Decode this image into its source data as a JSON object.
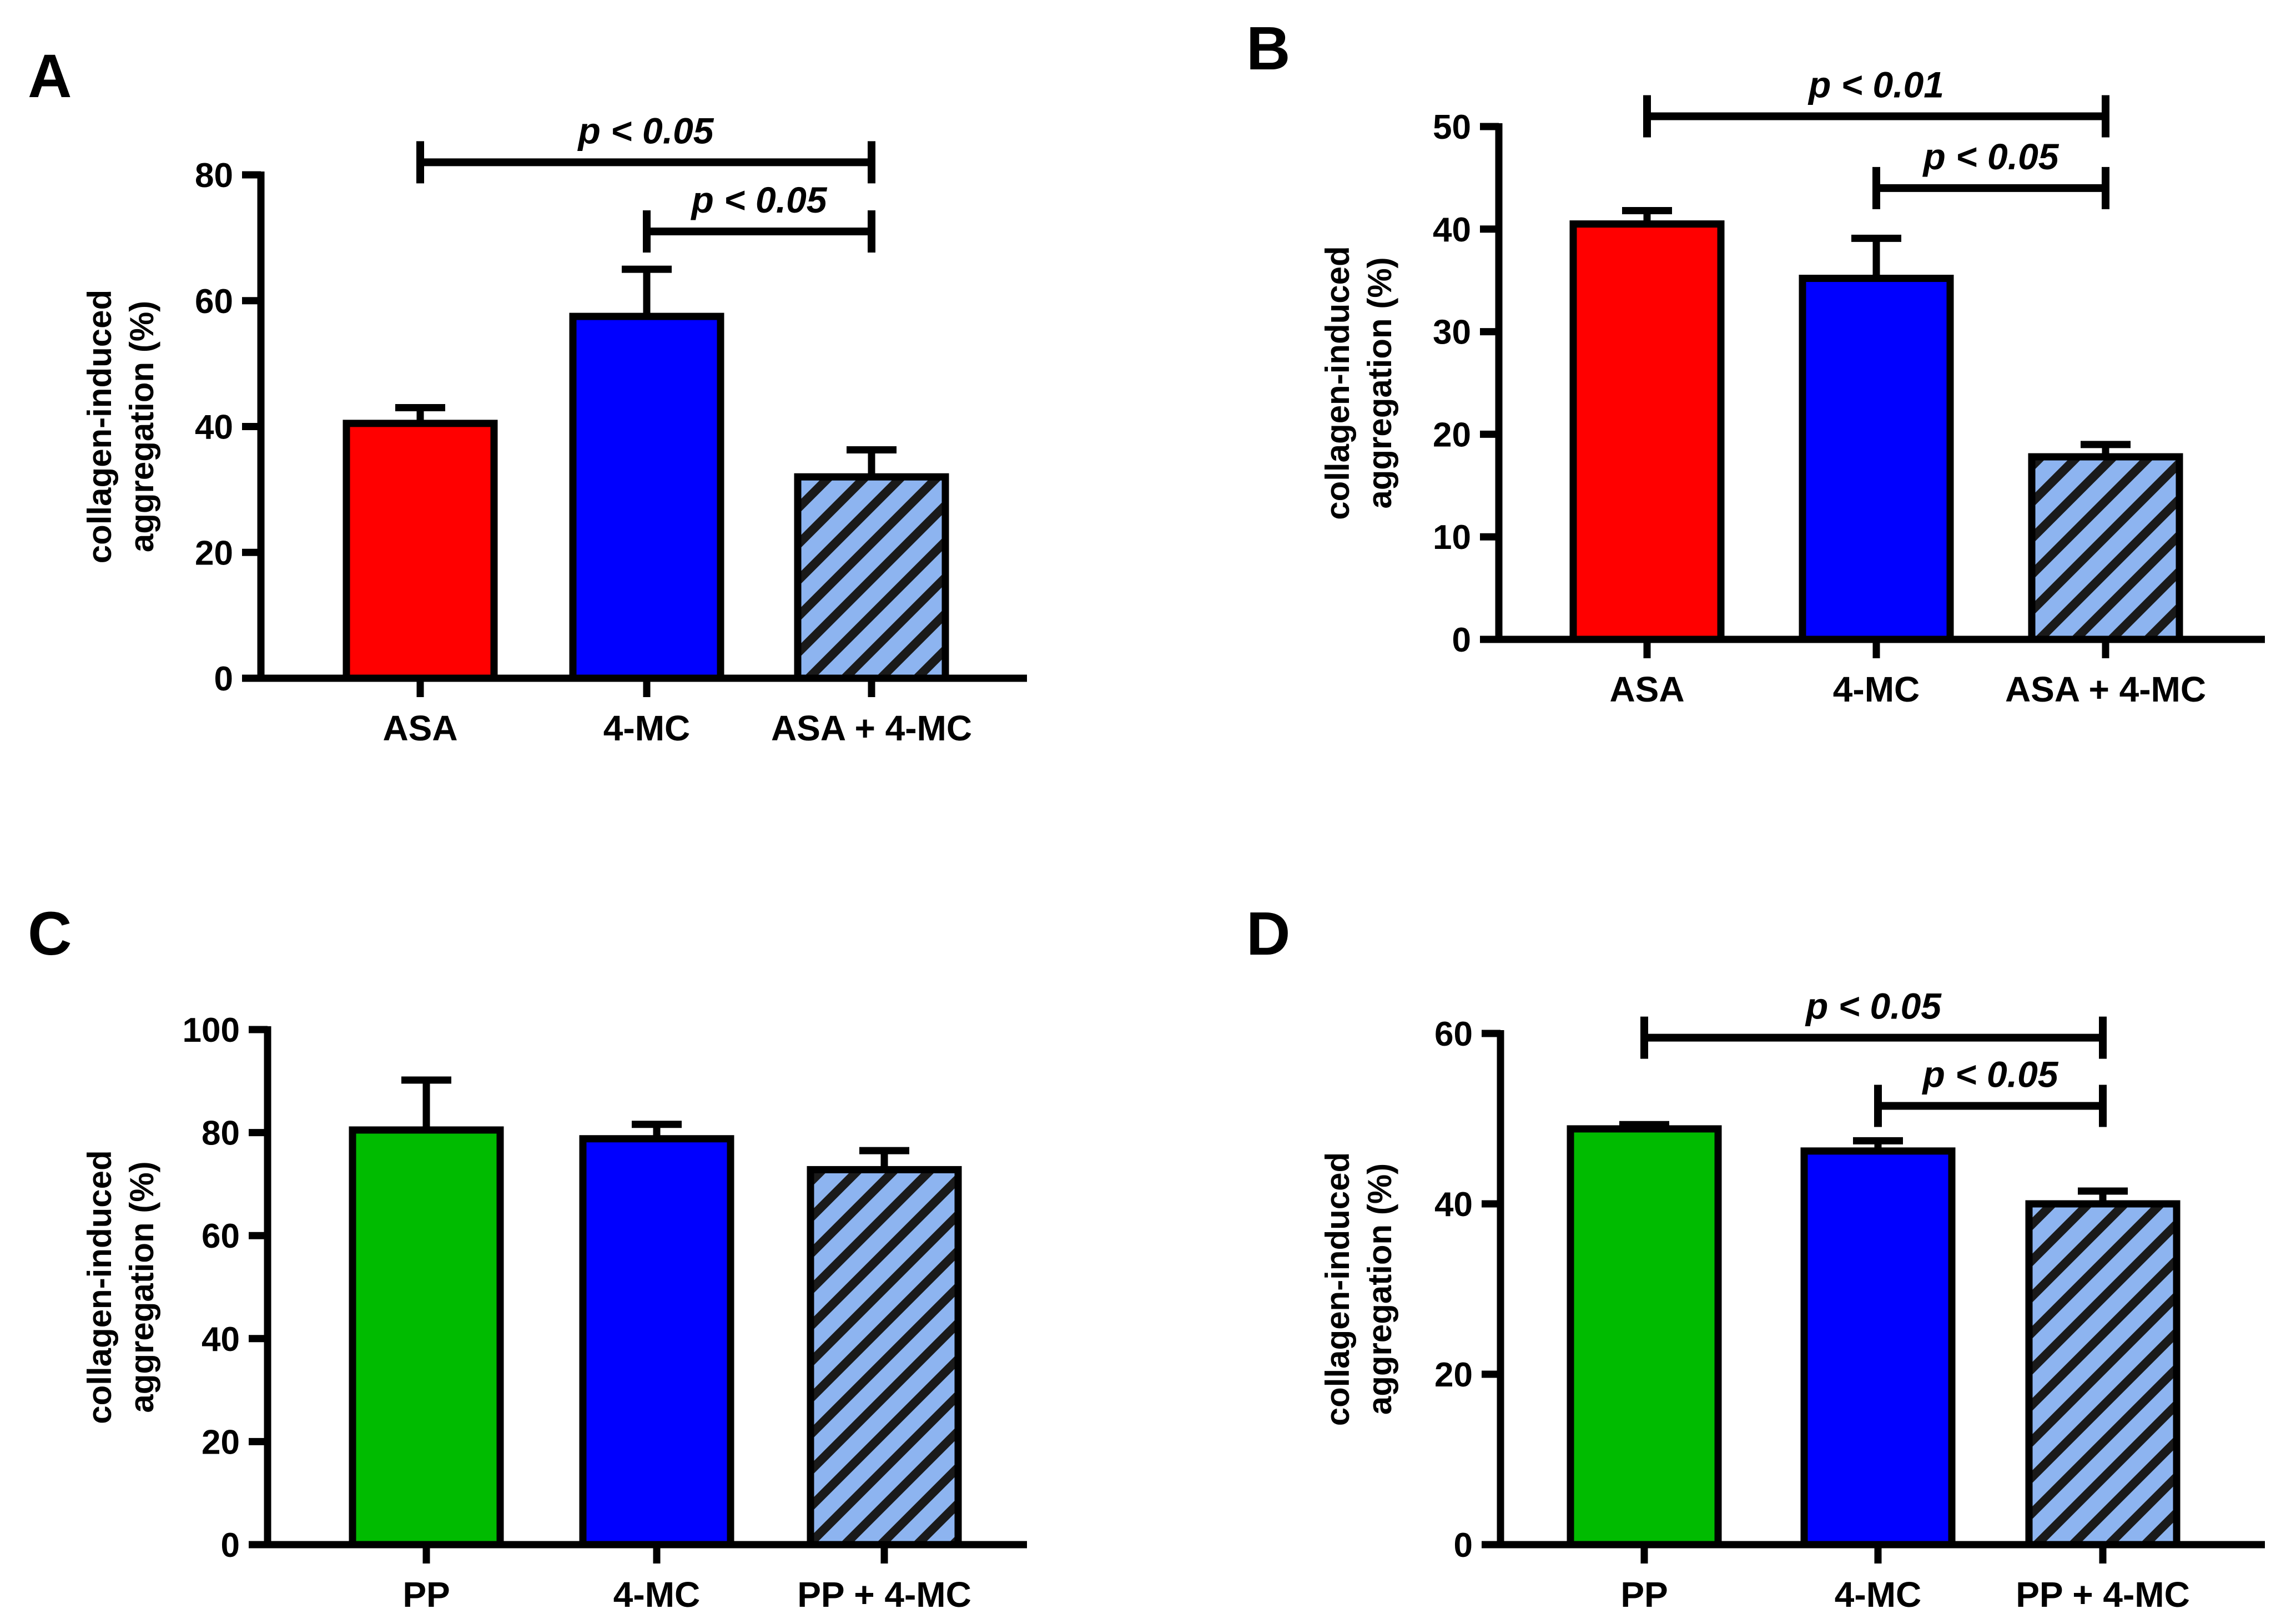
{
  "figure": {
    "ylabel_line1": "collagen-induced",
    "ylabel_line2": "aggregation (%)"
  },
  "colors": {
    "red": "#ff0000",
    "blue": "#0000ff",
    "green": "#00bb00",
    "hatch_bg": "#8db4f0",
    "hatch_line": "#1a1a1a",
    "axis": "#000000"
  },
  "chart_data": [
    {
      "panel": "A",
      "type": "bar",
      "title": "",
      "xlabel": "",
      "ylabel": "collagen-induced aggregation (%)",
      "categories": [
        "ASA",
        "4-MC",
        "ASA + 4-MC"
      ],
      "values": [
        40.5,
        57.5,
        32
      ],
      "errors": [
        2.5,
        7.5,
        4.3
      ],
      "fills": [
        "red",
        "blue",
        "hatch"
      ],
      "ylim": [
        0,
        80
      ],
      "yticks": [
        0,
        20,
        40,
        60,
        80
      ],
      "significance": [
        {
          "from": 0,
          "to": 2,
          "label": "p < 0.05",
          "level": 82
        },
        {
          "from": 1,
          "to": 2,
          "label": "p < 0.05",
          "level": 71
        }
      ]
    },
    {
      "panel": "B",
      "type": "bar",
      "title": "",
      "xlabel": "",
      "ylabel": "collagen-induced aggregation (%)",
      "categories": [
        "ASA",
        "4-MC",
        "ASA + 4-MC"
      ],
      "values": [
        40.5,
        35.2,
        17.8
      ],
      "errors": [
        1.3,
        3.9,
        1.2
      ],
      "fills": [
        "red",
        "blue",
        "hatch"
      ],
      "ylim": [
        0,
        50
      ],
      "yticks": [
        0,
        10,
        20,
        30,
        40,
        50
      ],
      "significance": [
        {
          "from": 0,
          "to": 2,
          "label": "p < 0.01",
          "level": 51
        },
        {
          "from": 1,
          "to": 2,
          "label": "p < 0.05",
          "level": 44
        }
      ]
    },
    {
      "panel": "C",
      "type": "bar",
      "title": "",
      "xlabel": "",
      "ylabel": "collagen-induced aggregation (%)",
      "categories": [
        "PP",
        "4-MC",
        "PP + 4-MC"
      ],
      "values": [
        80.5,
        78.8,
        72.8
      ],
      "errors": [
        9.7,
        2.8,
        3.7
      ],
      "fills": [
        "green",
        "blue",
        "hatch"
      ],
      "ylim": [
        0,
        100
      ],
      "yticks": [
        0,
        20,
        40,
        60,
        80,
        100
      ],
      "significance": []
    },
    {
      "panel": "D",
      "type": "bar",
      "title": "",
      "xlabel": "",
      "ylabel": "collagen-induced aggregation (%)",
      "categories": [
        "PP",
        "4-MC",
        "PP + 4-MC"
      ],
      "values": [
        48.8,
        46.2,
        40
      ],
      "errors": [
        0.5,
        1.2,
        1.5
      ],
      "fills": [
        "green",
        "blue",
        "hatch"
      ],
      "ylim": [
        0,
        60
      ],
      "yticks": [
        0,
        20,
        40,
        60
      ],
      "significance": [
        {
          "from": 0,
          "to": 2,
          "label": "p < 0.05",
          "level": 59.5
        },
        {
          "from": 1,
          "to": 2,
          "label": "p < 0.05",
          "level": 51.5
        }
      ]
    }
  ]
}
